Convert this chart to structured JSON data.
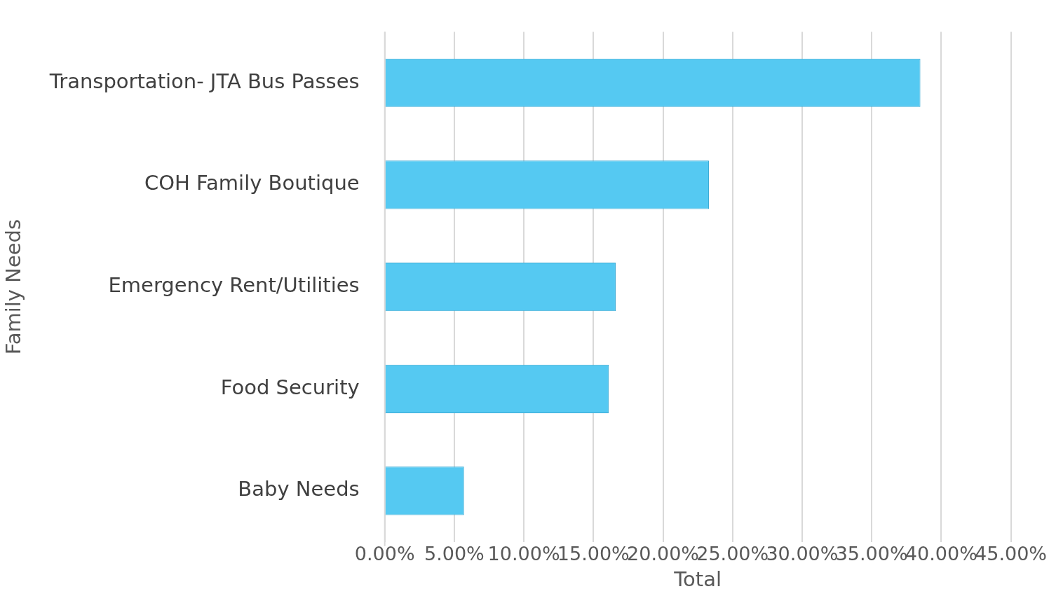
{
  "chart_data": {
    "type": "bar",
    "orientation": "horizontal",
    "xlabel": "Total",
    "ylabel": "Family Needs",
    "categories": [
      "Transportation- JTA Bus Passes",
      "COH Family Boutique",
      "Emergency Rent/Utilities",
      "Food Security",
      "Baby Needs"
    ],
    "values": [
      38.5,
      23.3,
      16.6,
      16.1,
      5.7
    ],
    "color": "#55c9f2",
    "xlim": [
      0,
      45
    ],
    "xticks": [
      {
        "value": 0,
        "label": "0.00%"
      },
      {
        "value": 5,
        "label": "5.00%"
      },
      {
        "value": 10,
        "label": "10.00%"
      },
      {
        "value": 15,
        "label": "15.00%"
      },
      {
        "value": 20,
        "label": "20.00%"
      },
      {
        "value": 25,
        "label": "25.00%"
      },
      {
        "value": 30,
        "label": "30.00%"
      },
      {
        "value": 35,
        "label": "35.00%"
      },
      {
        "value": 40,
        "label": "40.00%"
      },
      {
        "value": 45,
        "label": "45.00%"
      }
    ],
    "grid": "x",
    "legend": false
  }
}
